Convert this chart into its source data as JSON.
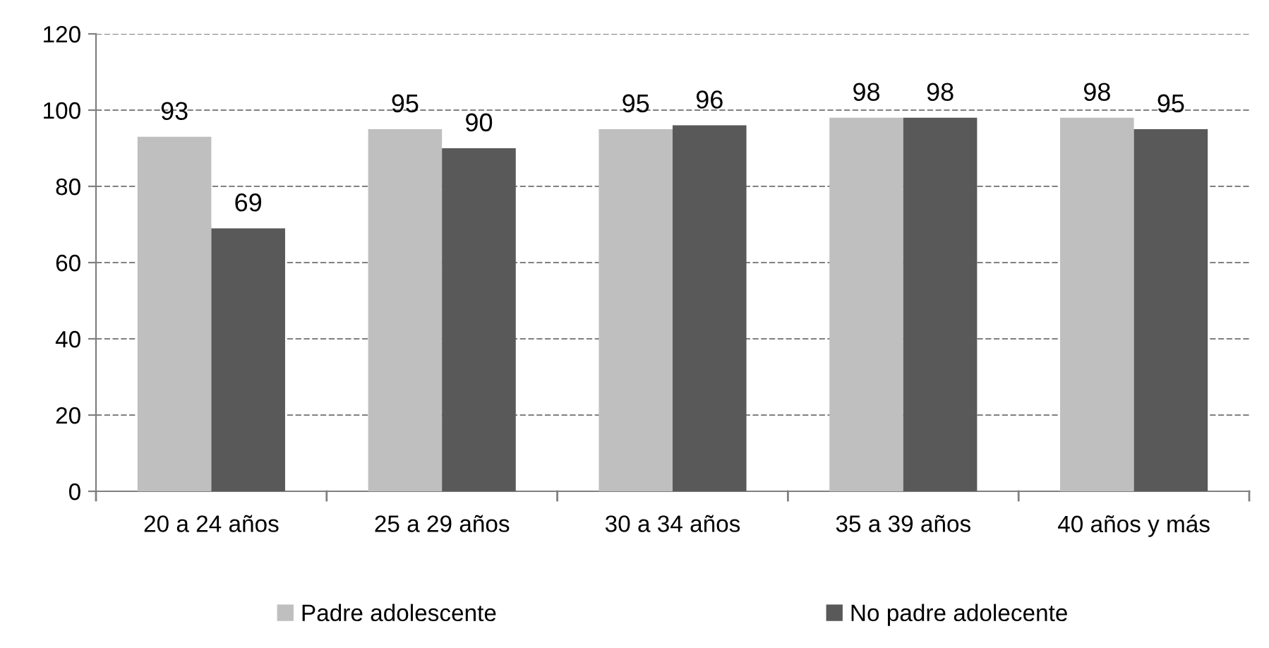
{
  "chart_data": {
    "type": "bar",
    "categories": [
      "20 a 24 años",
      "25 a 29 años",
      "30 a 34 años",
      "35 a 39 años",
      "40 años y más"
    ],
    "series": [
      {
        "name": "Padre adolescente",
        "color": "#bfbfbf",
        "values": [
          93,
          95,
          95,
          98,
          98
        ]
      },
      {
        "name": "No padre adolecente",
        "color": "#595959",
        "values": [
          69,
          90,
          96,
          98,
          95
        ]
      }
    ],
    "ylim": [
      0,
      120
    ],
    "yticks": [
      0,
      20,
      40,
      60,
      80,
      100,
      120
    ],
    "grid": "y",
    "legend": "bottom",
    "data_labels": true
  }
}
